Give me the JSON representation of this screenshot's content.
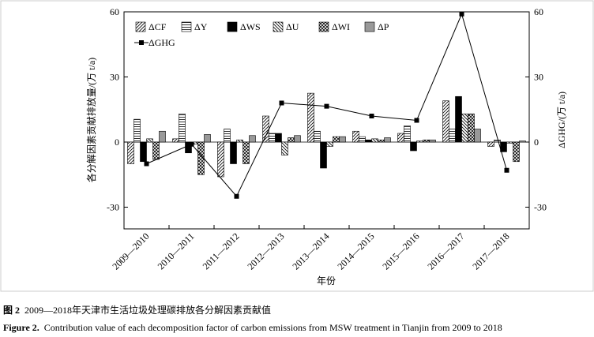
{
  "chart_data": {
    "type": "bar",
    "y_label": "各分解因素贡献排放量/(万 t/a)",
    "y2_label": "ΔGHG/(万 t/a)",
    "x_label": "年份",
    "categories": [
      "2009—2010",
      "2010—2011",
      "2011—2012",
      "2012—2013",
      "2013—2014",
      "2014—2015",
      "2015—2016",
      "2016—2017",
      "2017—2018"
    ],
    "ylim": [
      -40,
      60
    ],
    "yticks": [
      -30,
      0,
      30,
      60
    ],
    "y2lim": [
      -40,
      60
    ],
    "y2ticks": [
      -30,
      0,
      30,
      60
    ],
    "series": [
      {
        "name": "ΔCF",
        "color": "#000",
        "pattern": "diag",
        "values": [
          -10,
          1.5,
          -16,
          12,
          22.5,
          5,
          4,
          19,
          -2
        ]
      },
      {
        "name": "ΔY",
        "color": "#000",
        "pattern": "horiz",
        "values": [
          10.5,
          13,
          6,
          4,
          5,
          2.5,
          7.5,
          6,
          1
        ]
      },
      {
        "name": "ΔWS",
        "color": "#000",
        "pattern": "solid",
        "values": [
          -9,
          -5,
          -10,
          4,
          -12,
          1,
          -4,
          21,
          -4.5
        ]
      },
      {
        "name": "ΔU",
        "color": "#000",
        "pattern": "backdiag",
        "values": [
          1.5,
          -1,
          1,
          -6,
          -2,
          1.5,
          0.5,
          13,
          -0.5
        ]
      },
      {
        "name": "ΔWI",
        "color": "#000",
        "pattern": "cross",
        "values": [
          -8,
          -15,
          -10,
          2,
          2.5,
          1,
          1,
          13,
          -9
        ]
      },
      {
        "name": "ΔP",
        "color": "#999",
        "pattern": "solid",
        "values": [
          5,
          3.5,
          3,
          3,
          2.5,
          2,
          1,
          6,
          0.5
        ]
      },
      {
        "name": "ΔGHG",
        "color": "#000",
        "type": "line",
        "axis": "y2",
        "values": [
          -10,
          -1,
          -25,
          18,
          16.5,
          12,
          10,
          59,
          -13
        ]
      }
    ]
  },
  "caption": {
    "cn_label": "图 2",
    "cn_text": "2009—2018年天津市生活垃圾处理碳排放各分解因素贡献值",
    "en_label": "Figure 2.",
    "en_text": "Contribution value of each decomposition factor of carbon emissions from MSW treatment in Tianjin from 2009 to 2018"
  }
}
